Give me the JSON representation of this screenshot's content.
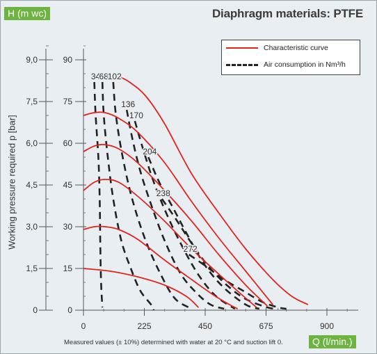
{
  "header": {
    "h_axis_tag": "H (m wc)",
    "title": "Diaphragm materials: PTFE",
    "q_axis_tag": "Q (l/min.)",
    "y_axis_label": "Working pressure required p [bar]",
    "footnote": "Measured values (± 10%) determined with water at 20 °C and suction lift 0."
  },
  "legend": {
    "items": [
      {
        "label": "Characteristic curve",
        "style": "solid",
        "color": "#e2231a"
      },
      {
        "label": "Air consumption in Nm³/h",
        "style": "dashed",
        "color": "#222222"
      }
    ]
  },
  "chart_data": {
    "type": "line",
    "title": "Diaphragm materials: PTFE",
    "xlabel": "Q (l/min.)",
    "ylabel": "H (m wc)",
    "ylabel_secondary": "Working pressure required p [bar]",
    "xlim": [
      0,
      1000
    ],
    "ylim": [
      0,
      100
    ],
    "x_ticks": [
      0,
      225,
      450,
      675,
      900
    ],
    "y_ticks": [
      0,
      15,
      30,
      45,
      60,
      75,
      90
    ],
    "y2_ticks": [
      "0",
      "1,5",
      "3,0",
      "4,5",
      "6,0",
      "7,5",
      "9,0"
    ],
    "grid": false,
    "legend_position": "top-right",
    "colors": {
      "characteristic": "#e2231a",
      "air": "#222222",
      "accent": "#6cb33f"
    },
    "series": [
      {
        "kind": "characteristic",
        "points": [
          [
            0,
            15
          ],
          [
            100,
            14
          ],
          [
            200,
            12
          ],
          [
            300,
            9
          ],
          [
            380,
            5
          ],
          [
            425,
            1
          ]
        ]
      },
      {
        "kind": "characteristic",
        "points": [
          [
            0,
            29
          ],
          [
            40,
            30
          ],
          [
            80,
            30
          ],
          [
            130,
            29
          ],
          [
            200,
            25.5
          ],
          [
            300,
            18
          ],
          [
            400,
            11
          ],
          [
            480,
            5.5
          ],
          [
            540,
            2
          ],
          [
            570,
            0.5
          ]
        ]
      },
      {
        "kind": "characteristic",
        "points": [
          [
            0,
            43
          ],
          [
            40,
            46
          ],
          [
            80,
            47
          ],
          [
            130,
            46
          ],
          [
            200,
            41
          ],
          [
            300,
            32
          ],
          [
            400,
            22
          ],
          [
            500,
            13
          ],
          [
            580,
            6
          ],
          [
            640,
            1
          ]
        ]
      },
      {
        "kind": "characteristic",
        "points": [
          [
            0,
            57
          ],
          [
            40,
            59
          ],
          [
            80,
            59.5
          ],
          [
            130,
            58
          ],
          [
            200,
            53
          ],
          [
            300,
            43
          ],
          [
            400,
            32
          ],
          [
            500,
            20
          ],
          [
            600,
            9
          ],
          [
            680,
            1.5
          ]
        ]
      },
      {
        "kind": "characteristic",
        "points": [
          [
            0,
            70
          ],
          [
            40,
            71
          ],
          [
            80,
            71
          ],
          [
            130,
            69
          ],
          [
            200,
            64
          ],
          [
            300,
            53
          ],
          [
            400,
            39
          ],
          [
            500,
            26
          ],
          [
            600,
            14
          ],
          [
            700,
            2
          ]
        ]
      },
      {
        "kind": "characteristic",
        "points": [
          [
            130,
            84
          ],
          [
            170,
            82
          ],
          [
            230,
            77
          ],
          [
            300,
            67
          ],
          [
            400,
            49
          ],
          [
            500,
            35
          ],
          [
            600,
            22
          ],
          [
            700,
            11
          ],
          [
            770,
            5
          ],
          [
            830,
            2
          ]
        ]
      },
      {
        "kind": "air",
        "label": "34",
        "points": [
          [
            40,
            82
          ],
          [
            45,
            70
          ],
          [
            55,
            55
          ],
          [
            60,
            40
          ],
          [
            62,
            25
          ],
          [
            65,
            10
          ],
          [
            70,
            1
          ]
        ]
      },
      {
        "kind": "air",
        "label": "68",
        "points": [
          [
            70,
            82
          ],
          [
            75,
            70
          ],
          [
            90,
            55
          ],
          [
            110,
            40
          ],
          [
            140,
            25
          ],
          [
            175,
            15
          ],
          [
            210,
            7
          ],
          [
            250,
            2
          ],
          [
            260,
            0
          ]
        ]
      },
      {
        "kind": "air",
        "label": "102",
        "points": [
          [
            110,
            82
          ],
          [
            120,
            70
          ],
          [
            145,
            55
          ],
          [
            180,
            40
          ],
          [
            230,
            25
          ],
          [
            290,
            12
          ],
          [
            340,
            4
          ],
          [
            400,
            0.5
          ]
        ]
      },
      {
        "kind": "air",
        "label": "136",
        "points": [
          [
            160,
            72
          ],
          [
            180,
            62
          ],
          [
            210,
            50
          ],
          [
            250,
            38
          ],
          [
            300,
            25
          ],
          [
            360,
            13
          ],
          [
            420,
            6
          ],
          [
            470,
            2
          ],
          [
            520,
            0.5
          ]
        ]
      },
      {
        "kind": "air",
        "label": "170",
        "points": [
          [
            190,
            68
          ],
          [
            220,
            58
          ],
          [
            260,
            46
          ],
          [
            310,
            34
          ],
          [
            370,
            22
          ],
          [
            430,
            12
          ],
          [
            490,
            5
          ],
          [
            560,
            0.5
          ]
        ]
      },
      {
        "kind": "air",
        "label": "204",
        "points": [
          [
            240,
            55
          ],
          [
            280,
            46
          ],
          [
            330,
            37
          ],
          [
            390,
            26
          ],
          [
            450,
            16
          ],
          [
            520,
            8
          ],
          [
            600,
            2
          ],
          [
            650,
            0.5
          ]
        ]
      },
      {
        "kind": "air",
        "label": "238",
        "points": [
          [
            290,
            40
          ],
          [
            340,
            33
          ],
          [
            400,
            24
          ],
          [
            460,
            16
          ],
          [
            530,
            9
          ],
          [
            600,
            4
          ],
          [
            680,
            1
          ],
          [
            720,
            0.5
          ]
        ]
      },
      {
        "kind": "air",
        "label": "272",
        "points": [
          [
            390,
            20
          ],
          [
            450,
            16
          ],
          [
            520,
            11
          ],
          [
            590,
            7
          ],
          [
            660,
            3
          ],
          [
            720,
            1
          ],
          [
            750,
            0.5
          ]
        ]
      }
    ],
    "air_labels": [
      "34",
      "68",
      "102",
      "136",
      "170",
      "204",
      "238",
      "272"
    ]
  }
}
